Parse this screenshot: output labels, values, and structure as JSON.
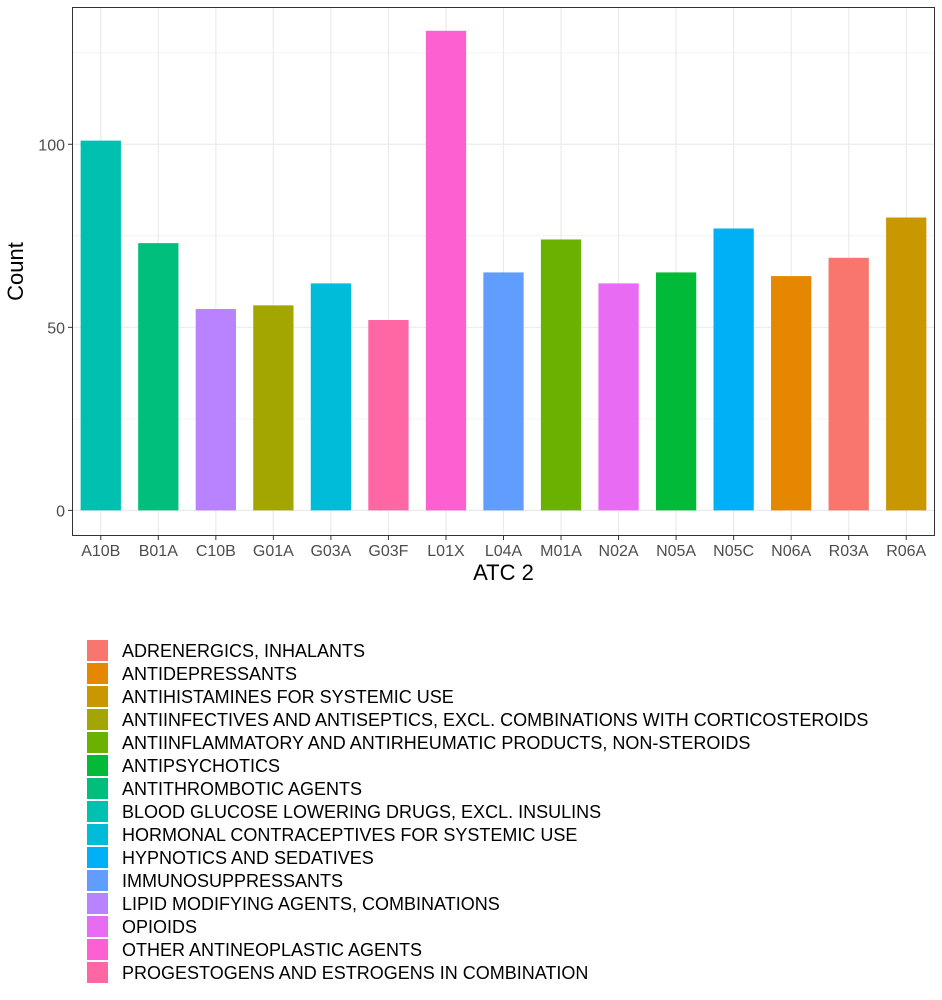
{
  "chart_data": {
    "type": "bar",
    "xlabel": "ATC 2",
    "ylabel": "Count",
    "ylim": [
      0,
      130
    ],
    "yticks": [
      0,
      50,
      100
    ],
    "grid": true,
    "legend_position": "bottom",
    "categories": [
      "A10B",
      "B01A",
      "C10B",
      "G01A",
      "G03A",
      "G03F",
      "L01X",
      "L04A",
      "M01A",
      "N02A",
      "N05A",
      "N05C",
      "N06A",
      "R03A",
      "R06A"
    ],
    "values": [
      101,
      73,
      55,
      56,
      62,
      52,
      131,
      65,
      74,
      62,
      65,
      77,
      64,
      69,
      80
    ],
    "bar_groups": [
      "BLOOD GLUCOSE LOWERING DRUGS, EXCL. INSULINS",
      "ANTITHROMBOTIC AGENTS",
      "LIPID MODIFYING AGENTS, COMBINATIONS",
      "ANTIINFECTIVES AND ANTISEPTICS, EXCL. COMBINATIONS WITH CORTICOSTEROIDS",
      "HORMONAL CONTRACEPTIVES FOR SYSTEMIC USE",
      "PROGESTOGENS AND ESTROGENS IN COMBINATION",
      "OTHER ANTINEOPLASTIC AGENTS",
      "IMMUNOSUPPRESSANTS",
      "ANTIINFLAMMATORY AND ANTIRHEUMATIC PRODUCTS, NON-STEROIDS",
      "OPIOIDS",
      "ANTIPSYCHOTICS",
      "HYPNOTICS AND SEDATIVES",
      "ANTIDEPRESSANTS",
      "ADRENERGICS, INHALANTS",
      "ANTIHISTAMINES FOR SYSTEMIC USE"
    ],
    "legend": [
      {
        "name": "ADRENERGICS, INHALANTS",
        "color": "#F8766D"
      },
      {
        "name": "ANTIDEPRESSANTS",
        "color": "#E58700"
      },
      {
        "name": "ANTIHISTAMINES FOR SYSTEMIC USE",
        "color": "#C99800"
      },
      {
        "name": "ANTIINFECTIVES AND ANTISEPTICS, EXCL. COMBINATIONS WITH CORTICOSTEROIDS",
        "color": "#A3A500"
      },
      {
        "name": "ANTIINFLAMMATORY AND ANTIRHEUMATIC PRODUCTS, NON-STEROIDS",
        "color": "#6BB100"
      },
      {
        "name": "ANTIPSYCHOTICS",
        "color": "#00BA38"
      },
      {
        "name": "ANTITHROMBOTIC AGENTS",
        "color": "#00BF7D"
      },
      {
        "name": "BLOOD GLUCOSE LOWERING DRUGS, EXCL. INSULINS",
        "color": "#00C0AF"
      },
      {
        "name": "HORMONAL CONTRACEPTIVES FOR SYSTEMIC USE",
        "color": "#00BCD8"
      },
      {
        "name": "HYPNOTICS AND SEDATIVES",
        "color": "#00B0F6"
      },
      {
        "name": "IMMUNOSUPPRESSANTS",
        "color": "#619CFF"
      },
      {
        "name": "LIPID MODIFYING AGENTS, COMBINATIONS",
        "color": "#B983FF"
      },
      {
        "name": "OPIOIDS",
        "color": "#E76BF3"
      },
      {
        "name": "OTHER ANTINEOPLASTIC AGENTS",
        "color": "#FD61D1"
      },
      {
        "name": "PROGESTOGENS AND ESTROGENS IN COMBINATION",
        "color": "#FF67A4"
      }
    ]
  }
}
